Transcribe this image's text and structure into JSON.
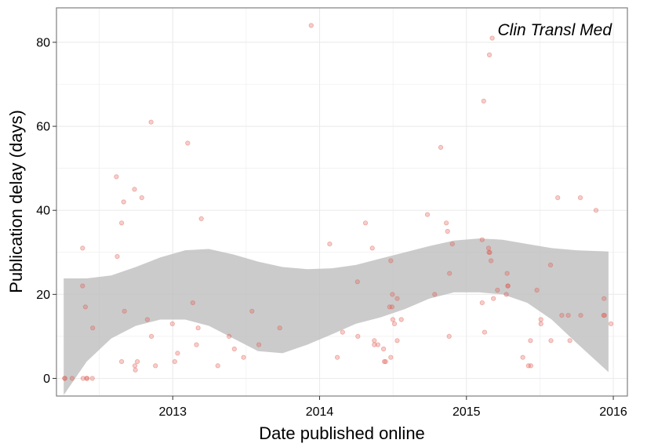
{
  "chart_data": {
    "type": "scatter",
    "title": "",
    "annotation": "Clin Transl Med",
    "xlabel": "Date published online",
    "ylabel": "Publication delay (days)",
    "xlim": [
      "2012-03-18",
      "2016-02-05"
    ],
    "ylim": [
      -4.2,
      88.2
    ],
    "grid": true,
    "legend": "none",
    "colors": {
      "points": "#e05a4f",
      "band": "#bdbdbd",
      "grid": "#ebebeb",
      "panel_border": "#7f7f7f"
    },
    "x_ticks": [
      {
        "value": "2013-01-01",
        "label": "2013"
      },
      {
        "value": "2014-01-01",
        "label": "2014"
      },
      {
        "value": "2015-01-01",
        "label": "2015"
      },
      {
        "value": "2016-01-01",
        "label": "2016"
      }
    ],
    "y_ticks": [
      {
        "value": 0,
        "label": "0"
      },
      {
        "value": 20,
        "label": "20"
      },
      {
        "value": 40,
        "label": "40"
      },
      {
        "value": 60,
        "label": "60"
      },
      {
        "value": 80,
        "label": "80"
      }
    ],
    "points": [
      {
        "x": "2012-04-07",
        "y": 0
      },
      {
        "x": "2012-04-08",
        "y": 0
      },
      {
        "x": "2012-04-26",
        "y": 0
      },
      {
        "x": "2012-05-22",
        "y": 31
      },
      {
        "x": "2012-05-22",
        "y": 22
      },
      {
        "x": "2012-05-23",
        "y": 0
      },
      {
        "x": "2012-05-29",
        "y": 17
      },
      {
        "x": "2012-06-01",
        "y": 0
      },
      {
        "x": "2012-06-02",
        "y": 0
      },
      {
        "x": "2012-06-15",
        "y": 0
      },
      {
        "x": "2012-06-16",
        "y": 12
      },
      {
        "x": "2012-08-14",
        "y": 48
      },
      {
        "x": "2012-08-16",
        "y": 29
      },
      {
        "x": "2012-08-27",
        "y": 4
      },
      {
        "x": "2012-08-27",
        "y": 37
      },
      {
        "x": "2012-09-01",
        "y": 42
      },
      {
        "x": "2012-09-03",
        "y": 16
      },
      {
        "x": "2012-09-28",
        "y": 45
      },
      {
        "x": "2012-09-29",
        "y": 3
      },
      {
        "x": "2012-09-30",
        "y": 2
      },
      {
        "x": "2012-10-05",
        "y": 4
      },
      {
        "x": "2012-10-16",
        "y": 43
      },
      {
        "x": "2012-10-30",
        "y": 14
      },
      {
        "x": "2012-11-08",
        "y": 61
      },
      {
        "x": "2012-11-09",
        "y": 10
      },
      {
        "x": "2012-11-19",
        "y": 3
      },
      {
        "x": "2012-12-31",
        "y": 13
      },
      {
        "x": "2013-01-06",
        "y": 4
      },
      {
        "x": "2013-01-13",
        "y": 6
      },
      {
        "x": "2013-02-07",
        "y": 56
      },
      {
        "x": "2013-02-20",
        "y": 18
      },
      {
        "x": "2013-03-01",
        "y": 8
      },
      {
        "x": "2013-03-05",
        "y": 12
      },
      {
        "x": "2013-03-13",
        "y": 38
      },
      {
        "x": "2013-04-23",
        "y": 3
      },
      {
        "x": "2013-05-21",
        "y": 10
      },
      {
        "x": "2013-06-03",
        "y": 7
      },
      {
        "x": "2013-06-26",
        "y": 5
      },
      {
        "x": "2013-07-17",
        "y": 16
      },
      {
        "x": "2013-08-03",
        "y": 8
      },
      {
        "x": "2013-09-24",
        "y": 12
      },
      {
        "x": "2013-12-11",
        "y": 84
      },
      {
        "x": "2014-01-26",
        "y": 32
      },
      {
        "x": "2014-02-14",
        "y": 5
      },
      {
        "x": "2014-02-27",
        "y": 11
      },
      {
        "x": "2014-04-05",
        "y": 23
      },
      {
        "x": "2014-04-06",
        "y": 10
      },
      {
        "x": "2014-04-25",
        "y": 37
      },
      {
        "x": "2014-05-12",
        "y": 31
      },
      {
        "x": "2014-05-17",
        "y": 9
      },
      {
        "x": "2014-05-17",
        "y": 8
      },
      {
        "x": "2014-05-26",
        "y": 8
      },
      {
        "x": "2014-06-09",
        "y": 7
      },
      {
        "x": "2014-06-11",
        "y": 4
      },
      {
        "x": "2014-06-14",
        "y": 4
      },
      {
        "x": "2014-06-24",
        "y": 17
      },
      {
        "x": "2014-06-27",
        "y": 28
      },
      {
        "x": "2014-06-27",
        "y": 5
      },
      {
        "x": "2014-06-30",
        "y": 17
      },
      {
        "x": "2014-07-01",
        "y": 20
      },
      {
        "x": "2014-07-02",
        "y": 14
      },
      {
        "x": "2014-07-06",
        "y": 13
      },
      {
        "x": "2014-07-13",
        "y": 19
      },
      {
        "x": "2014-07-13",
        "y": 9
      },
      {
        "x": "2014-07-23",
        "y": 14
      },
      {
        "x": "2014-09-26",
        "y": 39
      },
      {
        "x": "2014-10-14",
        "y": 20
      },
      {
        "x": "2014-10-29",
        "y": 55
      },
      {
        "x": "2014-11-12",
        "y": 37
      },
      {
        "x": "2014-11-15",
        "y": 35
      },
      {
        "x": "2014-11-19",
        "y": 10
      },
      {
        "x": "2014-11-20",
        "y": 25
      },
      {
        "x": "2014-11-27",
        "y": 32
      },
      {
        "x": "2015-02-09",
        "y": 33
      },
      {
        "x": "2015-02-09",
        "y": 18
      },
      {
        "x": "2015-02-13",
        "y": 66
      },
      {
        "x": "2015-02-15",
        "y": 11
      },
      {
        "x": "2015-02-25",
        "y": 31
      },
      {
        "x": "2015-02-26",
        "y": 30
      },
      {
        "x": "2015-02-27",
        "y": 77
      },
      {
        "x": "2015-02-28",
        "y": 30
      },
      {
        "x": "2015-03-03",
        "y": 28
      },
      {
        "x": "2015-03-06",
        "y": 81
      },
      {
        "x": "2015-03-09",
        "y": 19
      },
      {
        "x": "2015-03-19",
        "y": 21
      },
      {
        "x": "2015-04-10",
        "y": 20
      },
      {
        "x": "2015-04-12",
        "y": 25
      },
      {
        "x": "2015-04-14",
        "y": 22
      },
      {
        "x": "2015-04-14",
        "y": 22
      },
      {
        "x": "2015-05-21",
        "y": 5
      },
      {
        "x": "2015-06-04",
        "y": 3
      },
      {
        "x": "2015-06-09",
        "y": 9
      },
      {
        "x": "2015-06-10",
        "y": 3
      },
      {
        "x": "2015-06-25",
        "y": 21
      },
      {
        "x": "2015-07-05",
        "y": 13
      },
      {
        "x": "2015-07-05",
        "y": 14
      },
      {
        "x": "2015-07-29",
        "y": 27
      },
      {
        "x": "2015-07-30",
        "y": 9
      },
      {
        "x": "2015-08-16",
        "y": 43
      },
      {
        "x": "2015-08-26",
        "y": 15
      },
      {
        "x": "2015-09-11",
        "y": 15
      },
      {
        "x": "2015-09-15",
        "y": 9
      },
      {
        "x": "2015-10-11",
        "y": 43
      },
      {
        "x": "2015-10-12",
        "y": 15
      },
      {
        "x": "2015-11-19",
        "y": 40
      },
      {
        "x": "2015-12-08",
        "y": 15
      },
      {
        "x": "2015-12-09",
        "y": 19
      },
      {
        "x": "2015-12-10",
        "y": 15
      },
      {
        "x": "2015-12-26",
        "y": 13
      }
    ],
    "smooth_band": {
      "x": [
        "2012-04-05",
        "2012-06-01",
        "2012-08-01",
        "2012-10-01",
        "2012-12-01",
        "2013-02-01",
        "2013-04-01",
        "2013-06-01",
        "2013-08-01",
        "2013-10-01",
        "2013-12-01",
        "2014-02-01",
        "2014-04-01",
        "2014-06-01",
        "2014-08-01",
        "2014-10-01",
        "2014-12-01",
        "2015-02-01",
        "2015-04-01",
        "2015-06-01",
        "2015-08-01",
        "2015-10-01",
        "2015-12-20"
      ],
      "upper": [
        23.8,
        23.8,
        24.5,
        26.5,
        28.8,
        30.5,
        30.8,
        29.5,
        27.8,
        26.5,
        26.0,
        26.2,
        27.0,
        28.5,
        30.0,
        31.5,
        32.8,
        33.3,
        33.0,
        32.0,
        31.0,
        30.5,
        30.2
      ],
      "lower": [
        -4.0,
        4.0,
        9.5,
        12.5,
        14.0,
        14.0,
        12.5,
        9.5,
        6.5,
        6.0,
        8.0,
        10.5,
        13.0,
        14.5,
        16.5,
        19.0,
        20.5,
        20.5,
        20.0,
        18.0,
        14.0,
        8.5,
        1.5
      ]
    }
  }
}
